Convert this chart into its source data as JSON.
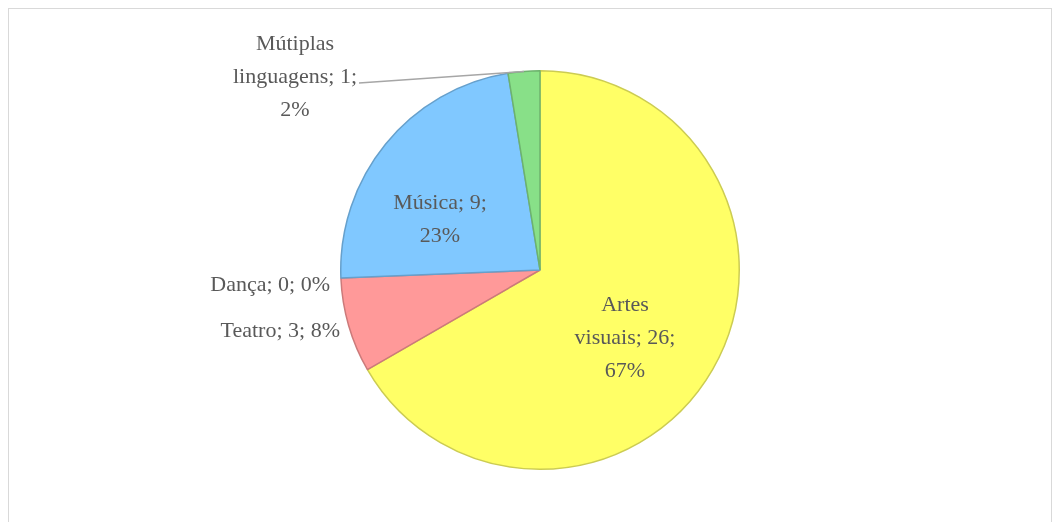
{
  "chart_data": {
    "type": "pie",
    "categories": [
      "Artes visuais",
      "Teatro",
      "Dança",
      "Música",
      "Mútiplas linguagens"
    ],
    "values": [
      26,
      3,
      0,
      9,
      1
    ],
    "colors": [
      "#ffff66",
      "#ff9999",
      "#ffb3b3",
      "#80c8ff",
      "#88e088"
    ],
    "value_labels": [
      "; 26; 67%",
      "; 3; 8%",
      "; 0; 0%",
      "; 9; 23%",
      "; 1; 2%"
    ],
    "legend": false
  }
}
